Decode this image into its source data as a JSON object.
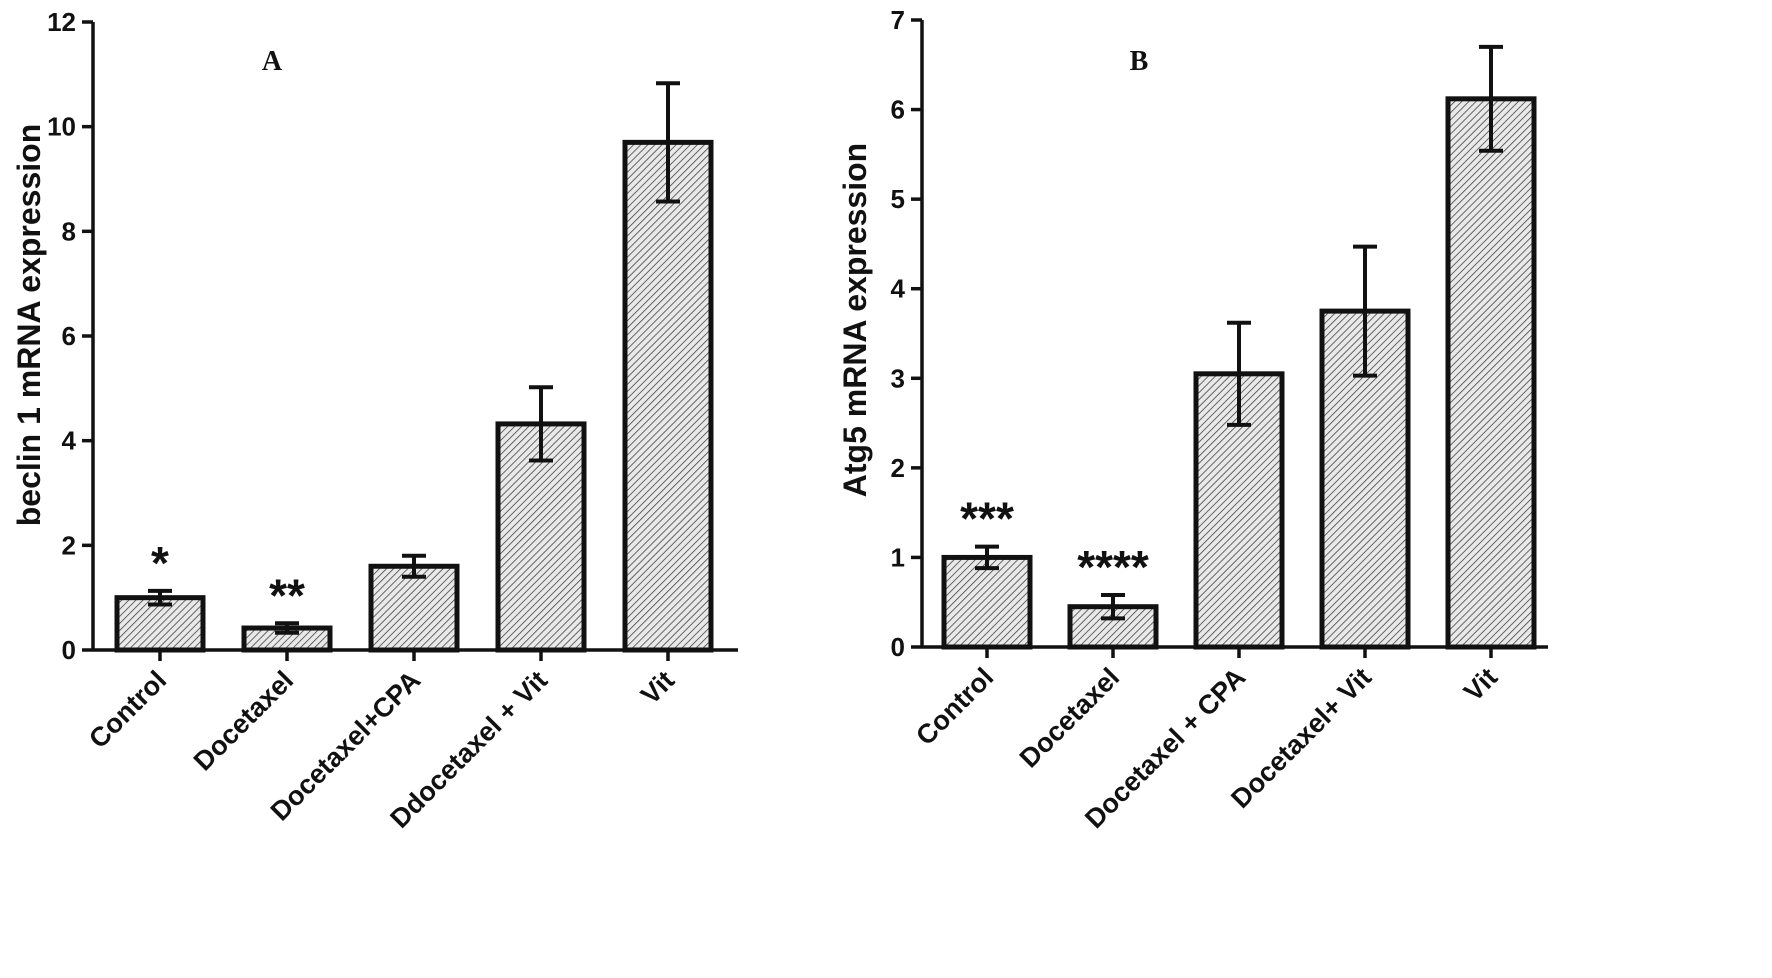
{
  "chart_data": [
    {
      "type": "bar",
      "title": "A",
      "ylabel": "beclin 1 mRNA expression",
      "xlabel": "",
      "ylim": [
        0,
        12
      ],
      "yticks": [
        0,
        2,
        4,
        6,
        8,
        10,
        12
      ],
      "categories": [
        "Control",
        "Docetaxel",
        "Docetaxel+CPA",
        "Ddocetaxel + Vit",
        "Vit"
      ],
      "values": [
        1.0,
        0.42,
        1.6,
        4.32,
        9.7
      ],
      "errors": [
        0.13,
        0.09,
        0.2,
        0.7,
        1.13
      ],
      "annotations": [
        "*",
        "**",
        "",
        "",
        ""
      ],
      "pattern": "diagonal hatch"
    },
    {
      "type": "bar",
      "title": "B",
      "ylabel": "Atg5 mRNA expression",
      "xlabel": "",
      "ylim": [
        0,
        7
      ],
      "yticks": [
        0,
        1,
        2,
        3,
        4,
        5,
        6,
        7
      ],
      "categories": [
        "Control",
        "Docetaxel",
        "Docetaxel + CPA",
        "Docetaxel+ Vit",
        "Vit"
      ],
      "values": [
        1.0,
        0.45,
        3.05,
        3.75,
        6.12
      ],
      "errors": [
        0.12,
        0.13,
        0.57,
        0.72,
        0.58
      ],
      "annotations": [
        "***",
        "****",
        "",
        "",
        ""
      ],
      "pattern": "diagonal hatch"
    }
  ]
}
